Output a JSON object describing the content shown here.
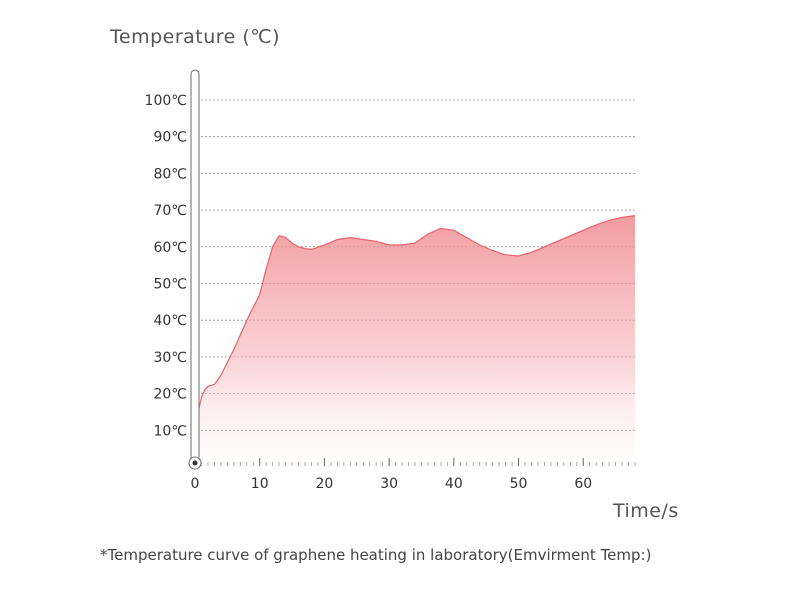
{
  "chart_data": {
    "type": "area",
    "ylabel": "Temperature (℃)",
    "xlabel": "Time/s",
    "caption": "*Temperature curve of graphene heating in laboratory(Emvirment Temp:)",
    "ylim": [
      0,
      100
    ],
    "xlim": [
      0,
      68
    ],
    "y_ticks": [
      "10℃",
      "20℃",
      "30℃",
      "40℃",
      "50℃",
      "60℃",
      "70℃",
      "80℃",
      "90℃",
      "100℃"
    ],
    "x_ticks": [
      "0",
      "10",
      "20",
      "30",
      "40",
      "50",
      "60"
    ],
    "grid": true,
    "color": "#e8636b",
    "x": [
      0,
      0.5,
      1,
      1.5,
      2,
      3,
      4,
      6,
      8,
      10,
      11,
      12,
      13,
      14,
      15,
      16,
      17,
      18,
      20,
      22,
      24,
      26,
      28,
      30,
      32,
      34,
      36,
      38,
      40,
      42,
      44,
      46,
      48,
      50,
      52,
      54,
      56,
      58,
      60,
      62,
      64,
      66,
      68
    ],
    "y": [
      8,
      15,
      19,
      21,
      22,
      22.5,
      25,
      32,
      40,
      47,
      54,
      60,
      63,
      62.5,
      61,
      60,
      59.5,
      59.3,
      60.5,
      62,
      62.5,
      62,
      61.5,
      60.5,
      60.5,
      61,
      63.5,
      65,
      64.5,
      62.5,
      60.5,
      59,
      57.8,
      57.5,
      58.5,
      60,
      61.5,
      63,
      64.5,
      66,
      67.2,
      68,
      68.5
    ]
  }
}
